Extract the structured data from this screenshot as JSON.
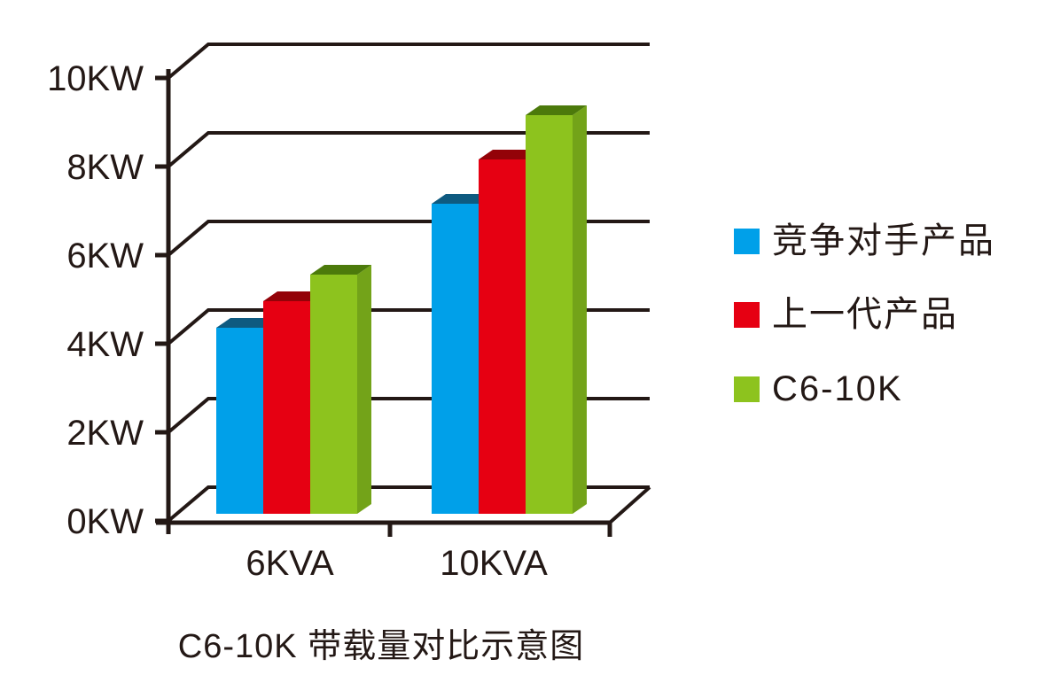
{
  "chart_data": {
    "type": "bar",
    "projection": "pseudo-3d",
    "title": "C6-10K 带载量对比示意图",
    "categories": [
      "6KVA",
      "10KVA"
    ],
    "series": [
      {
        "name": "竞争对手产品",
        "values": [
          4.2,
          7.0
        ],
        "color": "#00A0E9",
        "top_color": "#0E5A80",
        "side_color": "#0C76AC"
      },
      {
        "name": "上一代产品",
        "values": [
          4.8,
          8.0
        ],
        "color": "#E60012",
        "top_color": "#930208",
        "side_color": "#B00410"
      },
      {
        "name": "C6-10K",
        "values": [
          5.4,
          9.0
        ],
        "color": "#8DC31E",
        "top_color": "#4C7A0B",
        "side_color": "#73A319"
      }
    ],
    "yticks": [
      "0KW",
      "2KW",
      "4KW",
      "6KW",
      "8KW",
      "10KW"
    ],
    "ytick_values": [
      0,
      2,
      4,
      6,
      8,
      10
    ],
    "ylim": [
      0,
      10
    ],
    "y_unit": "KW",
    "grid": true,
    "legend_position": "right",
    "axis_color": "#231815",
    "background_color": "#FFFFFF"
  }
}
